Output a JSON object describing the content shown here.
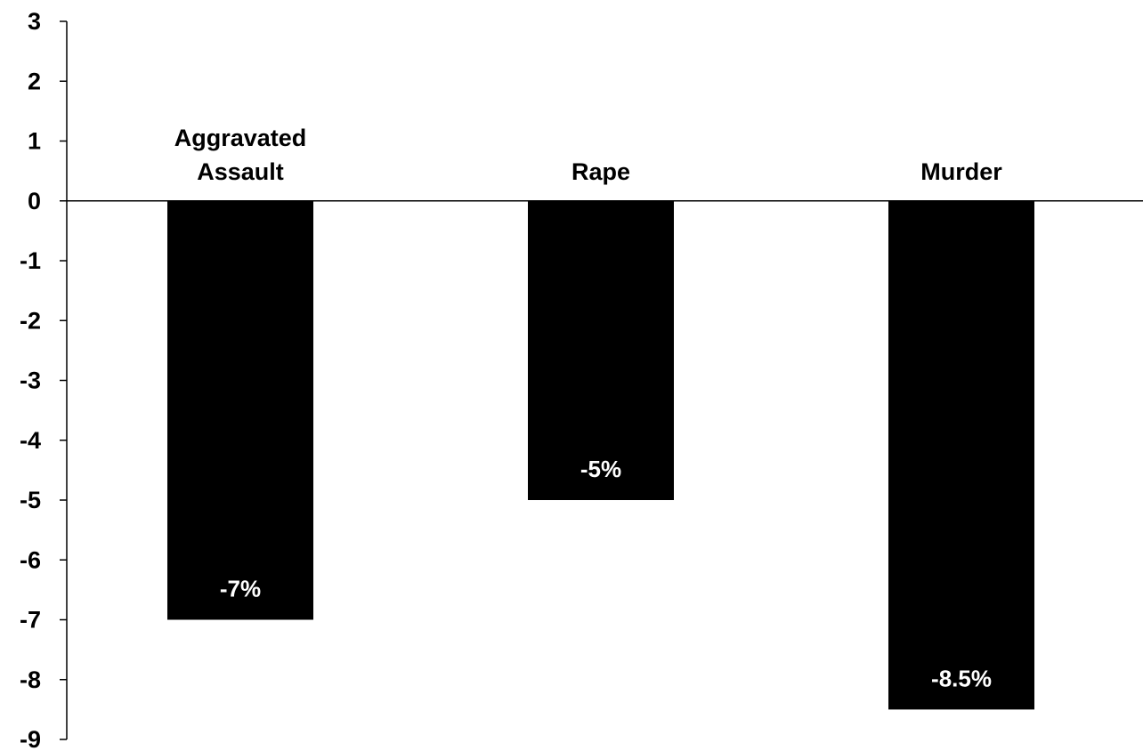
{
  "chart_data": {
    "type": "bar",
    "categories": [
      {
        "lines": [
          "Aggravated",
          "Assault"
        ]
      },
      {
        "lines": [
          "Rape"
        ]
      },
      {
        "lines": [
          "Murder"
        ]
      }
    ],
    "values": [
      -7,
      -5,
      -8.5
    ],
    "data_labels": [
      "-7%",
      "-5%",
      "-8.5%"
    ],
    "yticks": [
      "3",
      "2",
      "1",
      "0",
      "-1",
      "-2",
      "-3",
      "-4",
      "-5",
      "-6",
      "-7",
      "-8",
      "-9"
    ],
    "ylim": [
      -9,
      3
    ],
    "grid": false,
    "legend": "none",
    "title": "",
    "xlabel": "",
    "ylabel": "",
    "colors": {
      "bar": "#000000",
      "data_label": "#ffffff",
      "axis": "#000000",
      "text": "#000000"
    }
  }
}
